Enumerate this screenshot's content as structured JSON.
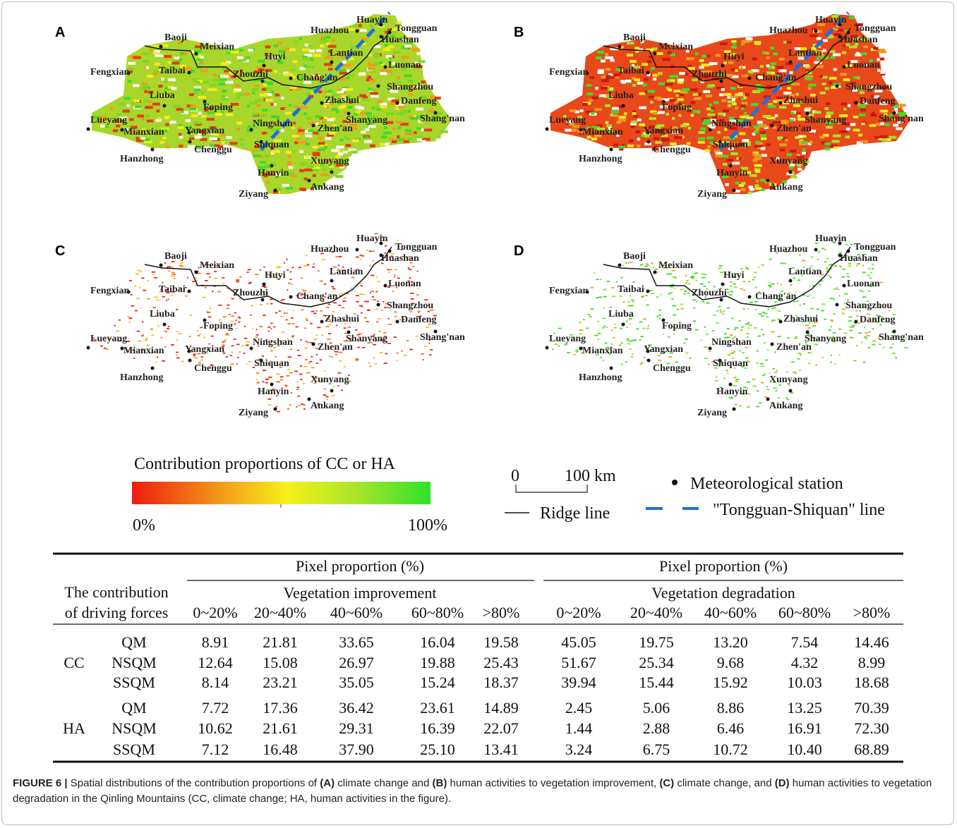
{
  "maps": {
    "panels": [
      "A",
      "B",
      "C",
      "D"
    ],
    "stations": [
      "Baoji",
      "Meixian",
      "Huyi",
      "Lantian",
      "Huazhou",
      "Huayin",
      "Tongguan",
      "Huashan",
      "Fengxian",
      "Taibai",
      "Zhouzhi",
      "Chang'an",
      "Luonan",
      "Liuba",
      "Foping",
      "Zhashui",
      "Shangzhou",
      "Danfeng",
      "Shang'nan",
      "Lueyang",
      "Mianxian",
      "Yangxian",
      "Ningshan",
      "Zhen'an",
      "Shanyang",
      "Hanzhong",
      "Chenggu",
      "Shiquan",
      "Hanyin",
      "Xunyang",
      "Ankang",
      "Ziyang"
    ]
  },
  "legend": {
    "title": "Contribution proportions of CC or HA",
    "min": "0%",
    "max": "100%",
    "scale_zero": "0",
    "scale_length": "100 km",
    "station": "Meteorological station",
    "ridge": "Ridge line",
    "line": "\"Tongguan-Shiquan\" line"
  },
  "table": {
    "stub": [
      "The contribution",
      "of driving forces"
    ],
    "groups": [
      {
        "header": "Pixel proportion (%)",
        "name": "Vegetation improvement",
        "columns": [
          "0~20%",
          "20~40%",
          "40~60%",
          "60~80%",
          ">80%"
        ]
      },
      {
        "header": "Pixel proportion (%)",
        "name": "Vegetation degradation",
        "columns": [
          "0~20%",
          "20~40%",
          "40~60%",
          "60~80%",
          ">80%"
        ]
      }
    ],
    "rows": [
      {
        "name": "CC",
        "items": [
          {
            "name": "QM",
            "values": [
              "8.91",
              "21.81",
              "33.65",
              "16.04",
              "19.58",
              "45.05",
              "19.75",
              "13.20",
              "7.54",
              "14.46"
            ]
          },
          {
            "name": "NSQM",
            "values": [
              "12.64",
              "15.08",
              "26.97",
              "19.88",
              "25.43",
              "51.67",
              "25.34",
              "9.68",
              "4.32",
              "8.99"
            ]
          },
          {
            "name": "SSQM",
            "values": [
              "8.14",
              "23.21",
              "35.05",
              "15.24",
              "18.37",
              "39.94",
              "15.44",
              "15.92",
              "10.03",
              "18.68"
            ]
          }
        ]
      },
      {
        "name": "HA",
        "items": [
          {
            "name": "QM",
            "values": [
              "7.72",
              "17.36",
              "36.42",
              "23.61",
              "14.89",
              "2.45",
              "5.06",
              "8.86",
              "13.25",
              "70.39"
            ]
          },
          {
            "name": "NSQM",
            "values": [
              "10.62",
              "21.61",
              "29.31",
              "16.39",
              "22.07",
              "1.44",
              "2.88",
              "6.46",
              "16.91",
              "72.30"
            ]
          },
          {
            "name": "SSQM",
            "values": [
              "7.12",
              "16.48",
              "37.90",
              "25.10",
              "13.41",
              "3.24",
              "6.75",
              "10.72",
              "10.40",
              "68.89"
            ]
          }
        ]
      }
    ]
  },
  "caption": [
    {
      "text": "FIGURE 6 | ",
      "bold": true
    },
    {
      "text": "Spatial distributions of the contribution proportions of ",
      "bold": false
    },
    {
      "text": "(A)",
      "bold": true
    },
    {
      "text": " climate change and ",
      "bold": false
    },
    {
      "text": "(B)",
      "bold": true
    },
    {
      "text": " human activities to vegetation improvement, ",
      "bold": false
    },
    {
      "text": "(C)",
      "bold": true
    },
    {
      "text": " climate change, and ",
      "bold": false
    },
    {
      "text": "(D)",
      "bold": true
    },
    {
      "text": " human activities to vegetation degradation in the Qinling Mountains (CC, climate change; HA, human activities in the figure).",
      "bold": false
    }
  ]
}
